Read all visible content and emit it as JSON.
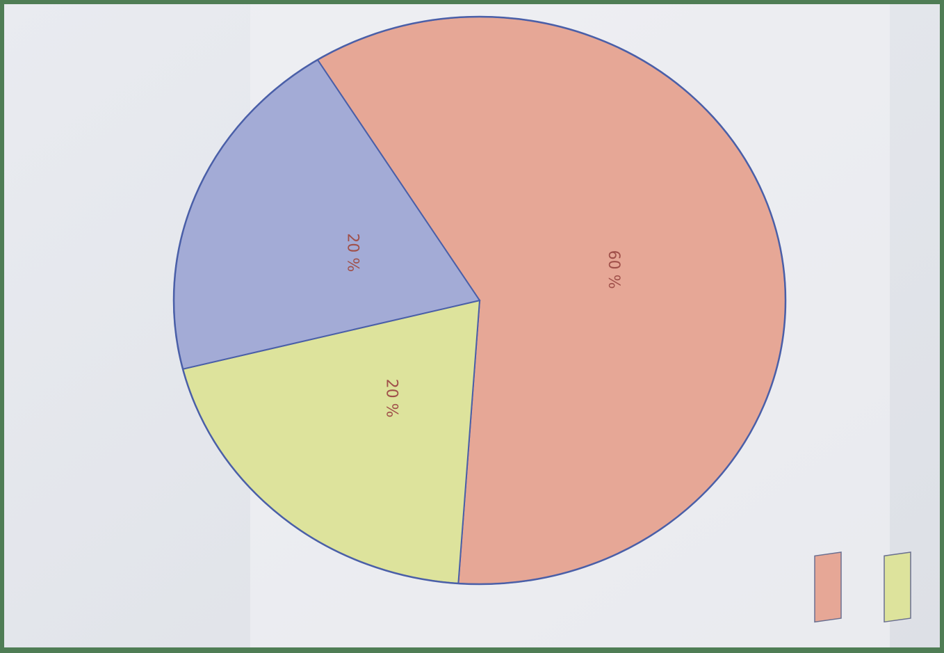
{
  "chart_data": {
    "type": "pie",
    "values": [
      60,
      20,
      20
    ],
    "value_labels": [
      "60 %",
      "20 %",
      "20 %"
    ],
    "colors": [
      "#e6a796",
      "#dde39c",
      "#a3abd6"
    ]
  }
}
